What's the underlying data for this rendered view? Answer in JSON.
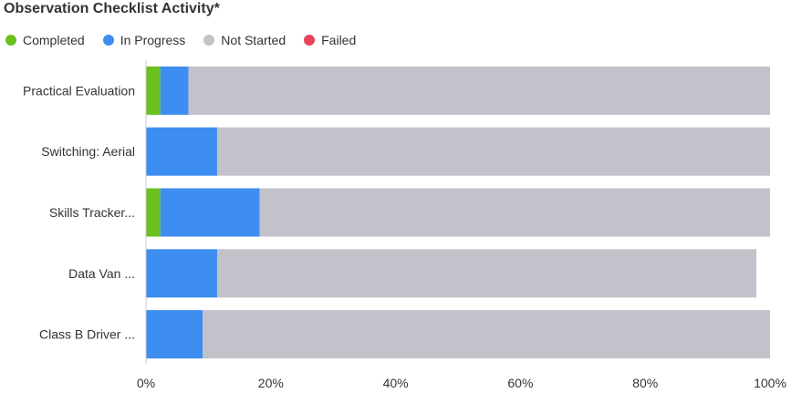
{
  "title": "Observation Checklist Activity*",
  "legend": [
    {
      "label": "Completed",
      "color": "#6bbf1f"
    },
    {
      "label": "In Progress",
      "color": "#3d8ef0"
    },
    {
      "label": "Not Started",
      "color": "#c2c2cb"
    },
    {
      "label": "Failed",
      "color": "#e8435a"
    }
  ],
  "chart_data": {
    "type": "bar",
    "orientation": "horizontal",
    "stacked": true,
    "title": "Observation Checklist Activity*",
    "categories": [
      "Practical Evaluation",
      "Switching: Aerial",
      "Skills Tracker...",
      "Data Van ...",
      "Class B Driver ..."
    ],
    "series": [
      {
        "name": "Completed",
        "color": "#6bbf1f",
        "values": [
          2.3,
          0,
          2.3,
          0,
          0
        ]
      },
      {
        "name": "In Progress",
        "color": "#3d8ef0",
        "values": [
          4.5,
          11.4,
          15.9,
          11.4,
          9.1
        ]
      },
      {
        "name": "Not Started",
        "color": "#c2c2cb",
        "values": [
          93.2,
          88.6,
          81.8,
          86.4,
          90.9
        ]
      },
      {
        "name": "Failed",
        "color": "#e8435a",
        "values": [
          0,
          0,
          0,
          0,
          0
        ]
      }
    ],
    "xlim": [
      0,
      100
    ],
    "xticks": [
      "0%",
      "20%",
      "40%",
      "60%",
      "80%",
      "100%"
    ],
    "legend_position": "top-left",
    "grid": false
  }
}
